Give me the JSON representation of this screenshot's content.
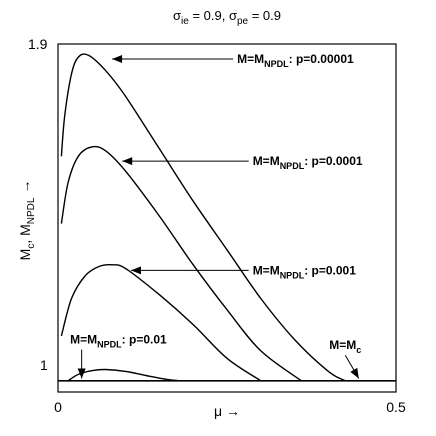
{
  "chart_data": {
    "type": "line",
    "title": {
      "sigma": "σ",
      "sub1": "ie",
      "mid": " = 0.9, ",
      "sub2": "pe",
      "end": " = 0.9"
    },
    "xlabel": "μ →",
    "ylabel": {
      "m": "M",
      "sub1": "c",
      "mid": ", M",
      "sub2": "NPDL",
      "end": " →"
    },
    "xlim": [
      0,
      0.5
    ],
    "ylim": [
      0.97,
      1.9
    ],
    "xticks": [
      "0",
      "0.5"
    ],
    "yticks": [
      "1",
      "1.9"
    ],
    "grid": false,
    "legend": "none",
    "series": [
      {
        "x": [
          0.005,
          0.01,
          0.02,
          0.03,
          0.045,
          0.07,
          0.1,
          0.15,
          0.2,
          0.25,
          0.3,
          0.35,
          0.4,
          0.425
        ],
        "y": [
          1.6,
          1.71,
          1.82,
          1.865,
          1.87,
          1.83,
          1.76,
          1.62,
          1.48,
          1.35,
          1.22,
          1.11,
          1.025,
          1.0
        ]
      },
      {
        "x": [
          0.005,
          0.015,
          0.03,
          0.05,
          0.07,
          0.1,
          0.15,
          0.2,
          0.25,
          0.3,
          0.36
        ],
        "y": [
          1.42,
          1.53,
          1.6,
          1.625,
          1.615,
          1.56,
          1.44,
          1.31,
          1.19,
          1.08,
          1.0
        ]
      },
      {
        "x": [
          0.005,
          0.02,
          0.04,
          0.06,
          0.08,
          0.1,
          0.15,
          0.2,
          0.25,
          0.3
        ],
        "y": [
          1.12,
          1.22,
          1.28,
          1.305,
          1.31,
          1.3,
          1.23,
          1.15,
          1.06,
          1.0
        ]
      },
      {
        "x": [
          0.015,
          0.03,
          0.05,
          0.07,
          0.1,
          0.13,
          0.16,
          0.18
        ],
        "y": [
          1.0,
          1.017,
          1.027,
          1.03,
          1.025,
          1.014,
          1.004,
          1.0
        ]
      },
      {
        "x": [
          0,
          0.5
        ],
        "y": [
          1.0,
          1.0
        ]
      }
    ],
    "annotations": [
      {
        "pre": "M=M",
        "sub": "NPDL",
        "post": ": p=0.00001",
        "tx": 0.265,
        "ty": 1.86,
        "ax": 0.08,
        "ay": 1.86,
        "anchor": "start"
      },
      {
        "pre": "M=M",
        "sub": "NPDL",
        "post": ": p=0.0001",
        "tx": 0.288,
        "ty": 1.587,
        "ax": 0.095,
        "ay": 1.587,
        "anchor": "start"
      },
      {
        "pre": "M=M",
        "sub": "NPDL",
        "post": ": p=0.001",
        "tx": 0.288,
        "ty": 1.295,
        "ax": 0.108,
        "ay": 1.295,
        "anchor": "start"
      },
      {
        "pre": "M=M",
        "sub": "NPDL",
        "post": ": p=0.01",
        "tx": 0.018,
        "ty": 1.11,
        "ax": 0.035,
        "ay": 1.006,
        "anchor": "start"
      },
      {
        "pre": "M=M",
        "sub": "c",
        "post": "",
        "tx": 0.425,
        "ty": 1.095,
        "ax": 0.445,
        "ay": 1.006,
        "anchor": "middle"
      }
    ]
  }
}
